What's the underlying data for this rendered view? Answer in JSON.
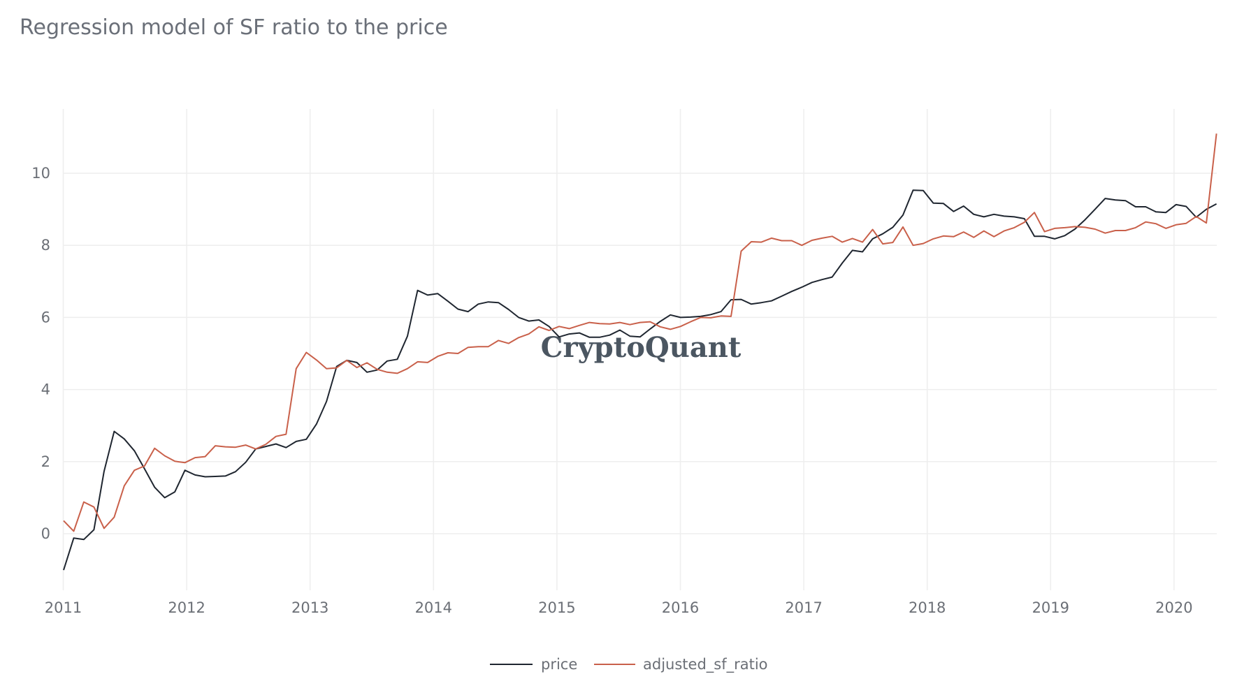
{
  "chart_data": {
    "type": "line",
    "title": "Regression model of SF ratio to the price",
    "xlabel": "",
    "ylabel": "",
    "x_start": "2011-01",
    "x_step": "month",
    "x_ticks": [
      "2011",
      "2012",
      "2013",
      "2014",
      "2015",
      "2016",
      "2017",
      "2018",
      "2019",
      "2020"
    ],
    "y_ticks": [
      "0",
      "2",
      "4",
      "6",
      "8",
      "10"
    ],
    "y_tick_values": [
      0,
      2,
      4,
      6,
      8,
      10
    ],
    "ylim": [
      -1.6,
      11.8
    ],
    "grid": true,
    "legend_position": "bottom-center",
    "watermark": "CryptoQuant",
    "series": [
      {
        "name": "price",
        "color": "#1f2630",
        "values": [
          -1.01,
          -0.12,
          -0.16,
          0.11,
          1.73,
          2.84,
          2.63,
          2.3,
          1.8,
          1.29,
          1.0,
          1.16,
          1.76,
          1.63,
          1.58,
          1.59,
          1.6,
          1.72,
          1.98,
          2.35,
          2.42,
          2.49,
          2.39,
          2.56,
          2.62,
          3.04,
          3.67,
          4.64,
          4.81,
          4.75,
          4.48,
          4.54,
          4.79,
          4.84,
          5.48,
          6.75,
          6.62,
          6.66,
          6.45,
          6.23,
          6.16,
          6.37,
          6.43,
          6.41,
          6.22,
          6.0,
          5.9,
          5.93,
          5.75,
          5.46,
          5.54,
          5.57,
          5.45,
          5.45,
          5.51,
          5.65,
          5.48,
          5.46,
          5.68,
          5.89,
          6.07,
          6.0,
          6.01,
          6.03,
          6.08,
          6.16,
          6.49,
          6.5,
          6.37,
          6.41,
          6.46,
          6.59,
          6.72,
          6.84,
          6.97,
          7.05,
          7.12,
          7.51,
          7.86,
          7.82,
          8.18,
          8.32,
          8.5,
          8.84,
          9.53,
          9.52,
          9.17,
          9.16,
          8.94,
          9.09,
          8.86,
          8.79,
          8.86,
          8.81,
          8.79,
          8.74,
          8.25,
          8.25,
          8.18,
          8.27,
          8.45,
          8.71,
          9.0,
          9.3,
          9.26,
          9.24,
          9.07,
          9.07,
          8.93,
          8.91,
          9.13,
          9.08,
          8.78,
          9.0,
          9.15
        ]
      },
      {
        "name": "adjusted_sf_ratio",
        "color": "#c9604a",
        "values": [
          0.36,
          0.07,
          0.88,
          0.74,
          0.15,
          0.46,
          1.33,
          1.76,
          1.88,
          2.37,
          2.16,
          2.01,
          1.97,
          2.11,
          2.14,
          2.44,
          2.41,
          2.4,
          2.46,
          2.35,
          2.48,
          2.7,
          2.76,
          4.58,
          5.03,
          4.82,
          4.58,
          4.6,
          4.81,
          4.61,
          4.74,
          4.56,
          4.48,
          4.45,
          4.58,
          4.77,
          4.75,
          4.92,
          5.02,
          5.0,
          5.17,
          5.19,
          5.19,
          5.36,
          5.28,
          5.44,
          5.54,
          5.74,
          5.64,
          5.75,
          5.69,
          5.78,
          5.86,
          5.83,
          5.82,
          5.86,
          5.8,
          5.86,
          5.88,
          5.74,
          5.67,
          5.75,
          5.88,
          6.0,
          5.99,
          6.04,
          6.03,
          7.84,
          8.1,
          8.09,
          8.2,
          8.13,
          8.13,
          8.0,
          8.14,
          8.2,
          8.25,
          8.09,
          8.19,
          8.09,
          8.44,
          8.04,
          8.08,
          8.51,
          8.0,
          8.05,
          8.18,
          8.26,
          8.24,
          8.37,
          8.22,
          8.4,
          8.24,
          8.4,
          8.49,
          8.64,
          8.91,
          8.38,
          8.47,
          8.49,
          8.52,
          8.5,
          8.45,
          8.34,
          8.41,
          8.41,
          8.49,
          8.65,
          8.6,
          8.47,
          8.57,
          8.61,
          8.8,
          8.62,
          11.1
        ]
      }
    ]
  }
}
